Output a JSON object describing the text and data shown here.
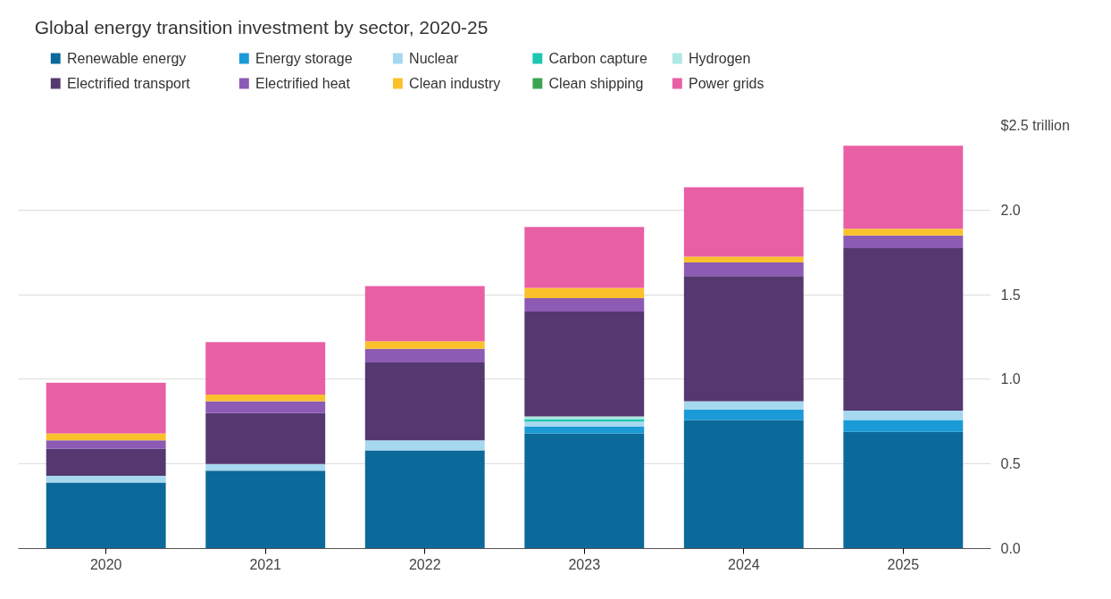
{
  "chart_data": {
    "type": "bar",
    "title": "Global energy transition investment by sector, 2020-25",
    "categories": [
      "2020",
      "2021",
      "2022",
      "2023",
      "2024",
      "2025"
    ],
    "stacked": true,
    "series": [
      {
        "name": "Renewable energy",
        "color": "#0b6a99",
        "values": [
          0.39,
          0.46,
          0.58,
          0.68,
          0.76,
          0.69
        ]
      },
      {
        "name": "Energy storage",
        "color": "#1a9ad6",
        "values": [
          0,
          0,
          0,
          0.04,
          0.06,
          0.07
        ]
      },
      {
        "name": "Nuclear",
        "color": "#a6d8ef",
        "values": [
          0.04,
          0.04,
          0.06,
          0.03,
          0.05,
          0.055
        ]
      },
      {
        "name": "Carbon capture",
        "color": "#1cc7b0",
        "values": [
          0,
          0,
          0,
          0.015,
          0,
          0
        ]
      },
      {
        "name": "Hydrogen",
        "color": "#aee9e3",
        "values": [
          0,
          0,
          0,
          0.015,
          0,
          0
        ]
      },
      {
        "name": "Electrified transport",
        "color": "#553870",
        "values": [
          0.16,
          0.3,
          0.46,
          0.62,
          0.74,
          0.96
        ]
      },
      {
        "name": "Electrified heat",
        "color": "#8c5bb4",
        "values": [
          0.05,
          0.07,
          0.08,
          0.08,
          0.08,
          0.075
        ]
      },
      {
        "name": "Clean industry",
        "color": "#fbc12c",
        "values": [
          0.04,
          0.04,
          0.045,
          0.06,
          0.035,
          0.04
        ]
      },
      {
        "name": "Clean shipping",
        "color": "#3da550",
        "values": [
          0,
          0,
          0,
          0,
          0,
          0
        ]
      },
      {
        "name": "Power grids",
        "color": "#e85fa5",
        "values": [
          0.3,
          0.31,
          0.325,
          0.36,
          0.41,
          0.49
        ]
      }
    ],
    "ylim": [
      0,
      2.5
    ],
    "yticks": [
      {
        "value": 0,
        "label": "0.0"
      },
      0.5,
      {
        "value": 1,
        "label": "1.0"
      },
      1.5,
      {
        "value": 2,
        "label": "2.0"
      },
      {
        "value": 2.5,
        "label": "$2.5 trillion"
      }
    ],
    "grid": "y",
    "legend": "top"
  }
}
